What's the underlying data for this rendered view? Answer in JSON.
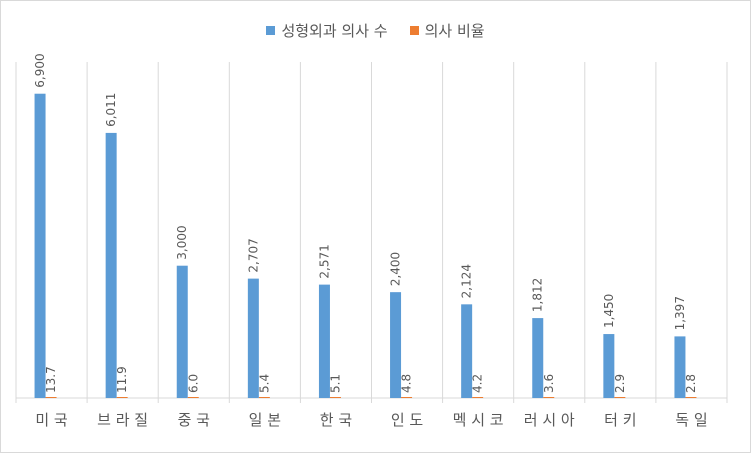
{
  "chart_data": {
    "type": "bar",
    "categories": [
      "미국",
      "브라질",
      "중국",
      "일본",
      "한국",
      "인도",
      "멕시코",
      "러시아",
      "터키",
      "독일"
    ],
    "category_labels": [
      "미 국",
      "브 라 질",
      "중 국",
      "일 본",
      "한 국",
      "인 도",
      "멕 시 코",
      "러 시 아",
      "터 키",
      "독 일"
    ],
    "series": [
      {
        "name": "성형외과 의사 수",
        "color": "#5b9bd5",
        "values": [
          6900,
          6011,
          3000,
          2707,
          2571,
          2400,
          2124,
          1812,
          1450,
          1397
        ],
        "labels": [
          "6,900",
          "6,011",
          "3,000",
          "2,707",
          "2,571",
          "2,400",
          "2,124",
          "1,812",
          "1,450",
          "1,397"
        ]
      },
      {
        "name": "의사 비율",
        "color": "#ed7d31",
        "values": [
          13.7,
          11.9,
          6.0,
          5.4,
          5.1,
          4.8,
          4.2,
          3.6,
          2.9,
          2.8
        ],
        "labels": [
          "13.7",
          "11.9",
          "6.0",
          "5.4",
          "5.1",
          "4.8",
          "4.2",
          "3.6",
          "2.9",
          "2.8"
        ]
      }
    ],
    "ylim": [
      0,
      8000
    ],
    "gridlines": "vertical",
    "legend_position": "top"
  }
}
